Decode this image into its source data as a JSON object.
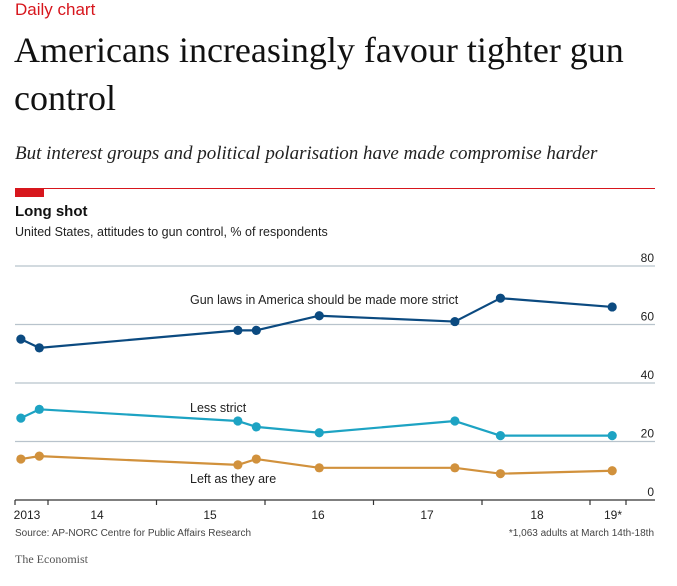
{
  "header": {
    "kicker": "Daily chart",
    "headline": "Americans increasingly favour tighter gun control",
    "subhead": "But interest groups and political polarisation have made compromise harder"
  },
  "chart_data": {
    "type": "line",
    "title": "Long shot",
    "subtitle": "United States, attitudes to gun control, % of respondents",
    "xlabel": "",
    "ylabel": "",
    "ylim": [
      0,
      80
    ],
    "yticks": [
      0,
      20,
      40,
      60,
      80
    ],
    "grid": true,
    "x_tick_labels": [
      "2013",
      "14",
      "15",
      "16",
      "17",
      "18",
      "19*"
    ],
    "x": [
      2013.75,
      2013.92,
      2015.75,
      2015.92,
      2016.5,
      2017.75,
      2018.17,
      2019.2
    ],
    "series": [
      {
        "name": "Gun laws in America should be made more strict",
        "color": "#0b4a80",
        "values": [
          55,
          52,
          58,
          58,
          63,
          61,
          69,
          66
        ]
      },
      {
        "name": "Less strict",
        "color": "#1da3c3",
        "values": [
          28,
          31,
          27,
          25,
          23,
          27,
          22,
          22
        ]
      },
      {
        "name": "Left as they are",
        "color": "#d1913c",
        "values": [
          14,
          15,
          12,
          14,
          11,
          11,
          9,
          10
        ]
      }
    ]
  },
  "footer": {
    "source": "Source: AP-NORC Centre for Public Affairs Research",
    "footnote": "*1,063 adults at March 14th-18th",
    "brand": "The Economist"
  }
}
